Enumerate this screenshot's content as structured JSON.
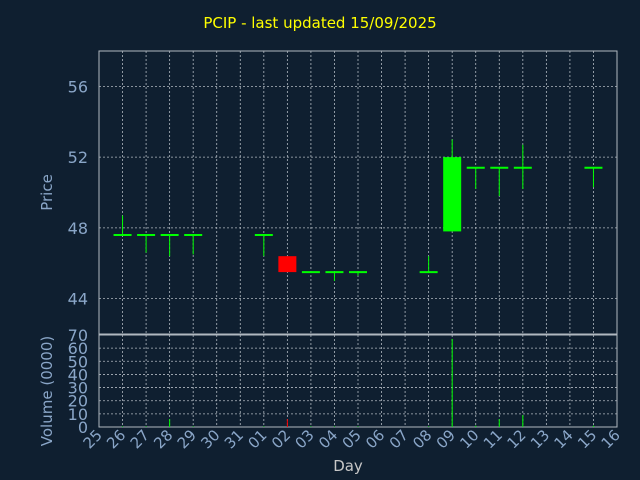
{
  "chart_data": {
    "title": "PCIP - last updated 15/09/2025",
    "colors": {
      "background": "#0f1f30",
      "title": "#ffff00",
      "tick": "#8aa6c8",
      "axis_label": "#8aa6c8",
      "xlabel": "#c8c8c8",
      "up": "#00ff00",
      "down": "#ff0000",
      "grid": "#b0b8c0"
    },
    "x_ticks": [
      "25",
      "26",
      "27",
      "28",
      "29",
      "30",
      "31",
      "01",
      "02",
      "03",
      "04",
      "05",
      "06",
      "07",
      "08",
      "09",
      "10",
      "11",
      "12",
      "13",
      "14",
      "15",
      "16"
    ],
    "xlabel": "Day",
    "price_panel": {
      "type": "candlestick",
      "ylabel": "Price",
      "ylim": [
        42,
        58
      ],
      "y_ticks": [
        44,
        48,
        52,
        56
      ],
      "candles": [
        {
          "day": "26",
          "open": 47.6,
          "close": 47.6,
          "high": 48.7,
          "low": 47.6
        },
        {
          "day": "27",
          "open": 47.6,
          "close": 47.6,
          "high": 47.6,
          "low": 46.6
        },
        {
          "day": "28",
          "open": 47.6,
          "close": 47.6,
          "high": 47.6,
          "low": 46.4
        },
        {
          "day": "29",
          "open": 47.6,
          "close": 47.6,
          "high": 47.6,
          "low": 46.5
        },
        {
          "day": "01",
          "open": 47.6,
          "close": 47.6,
          "high": 47.6,
          "low": 46.4
        },
        {
          "day": "02",
          "open": 46.4,
          "close": 45.5,
          "high": 46.4,
          "low": 45.5
        },
        {
          "day": "03",
          "open": 45.5,
          "close": 45.5,
          "high": 45.5,
          "low": 45.5
        },
        {
          "day": "04",
          "open": 45.5,
          "close": 45.5,
          "high": 45.5,
          "low": 45.0
        },
        {
          "day": "05",
          "open": 45.5,
          "close": 45.5,
          "high": 45.5,
          "low": 45.3
        },
        {
          "day": "08",
          "open": 45.5,
          "close": 45.5,
          "high": 46.4,
          "low": 45.5
        },
        {
          "day": "09",
          "open": 47.8,
          "close": 52.0,
          "high": 53.0,
          "low": 47.8
        },
        {
          "day": "10",
          "open": 51.4,
          "close": 51.4,
          "high": 51.4,
          "low": 50.2
        },
        {
          "day": "11",
          "open": 51.4,
          "close": 51.4,
          "high": 51.4,
          "low": 49.8
        },
        {
          "day": "12",
          "open": 51.4,
          "close": 51.4,
          "high": 52.7,
          "low": 50.2
        },
        {
          "day": "15",
          "open": 51.4,
          "close": 51.4,
          "high": 51.4,
          "low": 50.3
        }
      ]
    },
    "volume_panel": {
      "type": "bar",
      "ylabel": "Volume (0000)",
      "ylim": [
        0,
        70
      ],
      "y_ticks": [
        0,
        10,
        20,
        30,
        40,
        50,
        60,
        70
      ],
      "bars": [
        {
          "day": "26",
          "value": 0.5,
          "color": "#00ff00"
        },
        {
          "day": "27",
          "value": 0.5,
          "color": "#00ff00"
        },
        {
          "day": "28",
          "value": 6,
          "color": "#00ff00"
        },
        {
          "day": "29",
          "value": 0.5,
          "color": "#00ff00"
        },
        {
          "day": "01",
          "value": 0.5,
          "color": "#00ff00"
        },
        {
          "day": "02",
          "value": 6,
          "color": "#ff0000"
        },
        {
          "day": "03",
          "value": 0.5,
          "color": "#00ff00"
        },
        {
          "day": "04",
          "value": 0.5,
          "color": "#00ff00"
        },
        {
          "day": "05",
          "value": 0.5,
          "color": "#00ff00"
        },
        {
          "day": "08",
          "value": 0.5,
          "color": "#00ff00"
        },
        {
          "day": "09",
          "value": 67,
          "color": "#00ff00"
        },
        {
          "day": "10",
          "value": 1,
          "color": "#00ff00"
        },
        {
          "day": "11",
          "value": 6,
          "color": "#00ff00"
        },
        {
          "day": "12",
          "value": 9,
          "color": "#00ff00"
        },
        {
          "day": "15",
          "value": 1,
          "color": "#00ff00"
        }
      ]
    }
  }
}
